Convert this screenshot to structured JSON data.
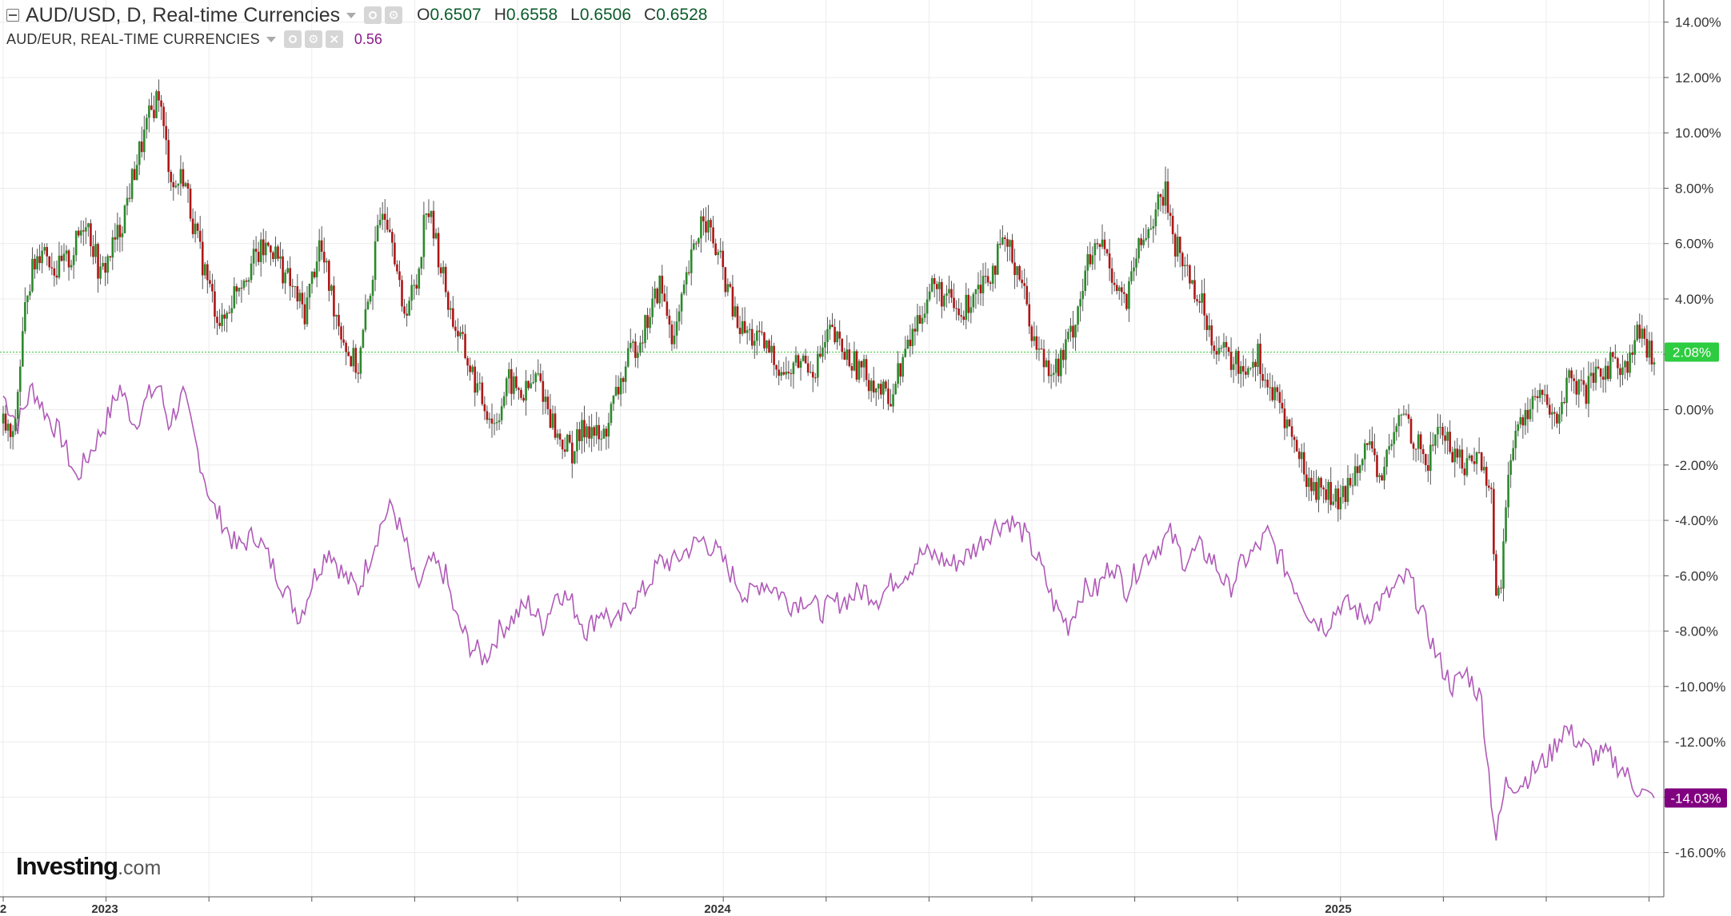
{
  "legend": {
    "main_symbol": "AUD/USD, D, Real-time Currencies",
    "open_label": "O",
    "open": "0.6507",
    "high_label": "H",
    "high": "0.6558",
    "low_label": "L",
    "low": "0.6506",
    "close_label": "C",
    "close": "0.6528",
    "compare_symbol": "AUD/EUR, REAL-TIME CURRENCIES",
    "compare_value": "0.56"
  },
  "watermark": {
    "brand": "Investing",
    "suffix": ".com"
  },
  "colors": {
    "up": "#2a8a2a",
    "down": "#b01515",
    "wick": "#555555",
    "compare_line": "#b05ab8",
    "grid": "#ececec",
    "axis": "#555555",
    "last_main_bg": "#2ecc40",
    "last_compare_bg": "#800080",
    "ohlc_text": "#0a5c2a",
    "ref_line": "#33cc33"
  },
  "chart_data": {
    "type": "candlestick",
    "title": "AUD/USD, D, Real-time Currencies",
    "y_unit": "%",
    "ylim": [
      -17.6,
      14.8
    ],
    "y_ticks": [
      "14.00%",
      "12.00%",
      "10.00%",
      "8.00%",
      "6.00%",
      "4.00%",
      "2.00%",
      "0.00%",
      "-2.00%",
      "-4.00%",
      "-6.00%",
      "-8.00%",
      "-10.00%",
      "-12.00%",
      "-14.00%",
      "-16.00%"
    ],
    "x_labels": [
      "2023",
      "2024",
      "2025"
    ],
    "x_edge_label": "2",
    "grid": true,
    "last_value_main": "2.08%",
    "last_value_compare": "-14.03%",
    "series": [
      {
        "name": "AUD/USD",
        "kind": "candles",
        "anchors": [
          [
            0,
            -0.5
          ],
          [
            4,
            -1.2
          ],
          [
            10,
            4.5
          ],
          [
            16,
            6.0
          ],
          [
            22,
            5.0
          ],
          [
            28,
            5.5
          ],
          [
            34,
            7.0
          ],
          [
            40,
            4.8
          ],
          [
            48,
            6.5
          ],
          [
            55,
            9.0
          ],
          [
            60,
            10.5
          ],
          [
            64,
            11.5
          ],
          [
            66,
            10.0
          ],
          [
            70,
            8.0
          ],
          [
            74,
            8.5
          ],
          [
            80,
            6.0
          ],
          [
            86,
            4.0
          ],
          [
            90,
            3.0
          ],
          [
            96,
            4.5
          ],
          [
            104,
            5.5
          ],
          [
            110,
            6.0
          ],
          [
            118,
            4.5
          ],
          [
            124,
            3.5
          ],
          [
            130,
            6.0
          ],
          [
            136,
            3.8
          ],
          [
            142,
            2.0
          ],
          [
            146,
            1.5
          ],
          [
            152,
            5.0
          ],
          [
            156,
            7.5
          ],
          [
            160,
            6.5
          ],
          [
            164,
            3.5
          ],
          [
            170,
            4.5
          ],
          [
            174,
            7.5
          ],
          [
            178,
            6.0
          ],
          [
            184,
            3.5
          ],
          [
            190,
            2.0
          ],
          [
            196,
            0.5
          ],
          [
            202,
            -0.5
          ],
          [
            208,
            1.0
          ],
          [
            214,
            0.5
          ],
          [
            220,
            1.2
          ],
          [
            228,
            -1.0
          ],
          [
            234,
            -1.5
          ],
          [
            240,
            -0.5
          ],
          [
            246,
            -1.2
          ],
          [
            252,
            0.5
          ],
          [
            258,
            2.0
          ],
          [
            264,
            3.0
          ],
          [
            270,
            4.5
          ],
          [
            276,
            2.5
          ],
          [
            282,
            5.0
          ],
          [
            288,
            7.2
          ],
          [
            292,
            6.0
          ],
          [
            296,
            5.0
          ],
          [
            302,
            3.0
          ],
          [
            310,
            2.5
          ],
          [
            316,
            2.0
          ],
          [
            322,
            1.2
          ],
          [
            328,
            1.8
          ],
          [
            334,
            1.5
          ],
          [
            340,
            2.8
          ],
          [
            346,
            2.0
          ],
          [
            352,
            1.5
          ],
          [
            358,
            1.0
          ],
          [
            364,
            0.3
          ],
          [
            370,
            1.8
          ],
          [
            376,
            3.2
          ],
          [
            382,
            4.5
          ],
          [
            388,
            4.0
          ],
          [
            394,
            3.3
          ],
          [
            400,
            4.5
          ],
          [
            406,
            5.0
          ],
          [
            412,
            6.0
          ],
          [
            418,
            5.0
          ],
          [
            424,
            2.5
          ],
          [
            428,
            1.8
          ],
          [
            434,
            1.5
          ],
          [
            440,
            3.0
          ],
          [
            446,
            5.2
          ],
          [
            452,
            6.0
          ],
          [
            458,
            4.5
          ],
          [
            462,
            3.8
          ],
          [
            466,
            5.5
          ],
          [
            472,
            6.8
          ],
          [
            478,
            7.8
          ],
          [
            482,
            6.0
          ],
          [
            486,
            5.2
          ],
          [
            492,
            4.0
          ],
          [
            498,
            2.5
          ],
          [
            504,
            1.8
          ],
          [
            510,
            1.5
          ],
          [
            516,
            2.0
          ],
          [
            520,
            0.8
          ],
          [
            526,
            0.0
          ],
          [
            532,
            -1.5
          ],
          [
            538,
            -2.8
          ],
          [
            544,
            -2.9
          ],
          [
            550,
            -3.5
          ],
          [
            556,
            -2.0
          ],
          [
            560,
            -1.2
          ],
          [
            566,
            -2.5
          ],
          [
            570,
            -1.5
          ],
          [
            576,
            0.0
          ],
          [
            580,
            -1.0
          ],
          [
            586,
            -2.0
          ],
          [
            590,
            -0.5
          ],
          [
            596,
            -1.5
          ],
          [
            602,
            -2.0
          ],
          [
            606,
            -1.5
          ],
          [
            612,
            -3.0
          ],
          [
            614,
            -7.0
          ],
          [
            616,
            -6.0
          ],
          [
            620,
            -1.5
          ],
          [
            626,
            0.0
          ],
          [
            632,
            0.5
          ],
          [
            638,
            -0.5
          ],
          [
            644,
            1.0
          ],
          [
            650,
            0.5
          ],
          [
            656,
            1.2
          ],
          [
            662,
            1.8
          ],
          [
            668,
            1.5
          ],
          [
            672,
            2.8
          ],
          [
            676,
            2.1
          ]
        ]
      },
      {
        "name": "AUD/EUR",
        "kind": "line",
        "anchors": [
          [
            0,
            0.5
          ],
          [
            6,
            -0.5
          ],
          [
            12,
            0.8
          ],
          [
            18,
            -0.2
          ],
          [
            24,
            -1.0
          ],
          [
            30,
            -2.5
          ],
          [
            36,
            -1.5
          ],
          [
            42,
            -0.5
          ],
          [
            48,
            0.8
          ],
          [
            54,
            -0.5
          ],
          [
            60,
            0.5
          ],
          [
            64,
            0.9
          ],
          [
            68,
            -0.5
          ],
          [
            74,
            0.5
          ],
          [
            80,
            -1.5
          ],
          [
            86,
            -3.5
          ],
          [
            90,
            -4.0
          ],
          [
            96,
            -5.0
          ],
          [
            104,
            -4.5
          ],
          [
            110,
            -5.5
          ],
          [
            116,
            -6.5
          ],
          [
            122,
            -7.5
          ],
          [
            128,
            -6.0
          ],
          [
            134,
            -5.0
          ],
          [
            140,
            -6.0
          ],
          [
            146,
            -6.5
          ],
          [
            150,
            -5.5
          ],
          [
            156,
            -4.0
          ],
          [
            160,
            -3.5
          ],
          [
            166,
            -5.0
          ],
          [
            170,
            -6.5
          ],
          [
            176,
            -5.5
          ],
          [
            182,
            -6.0
          ],
          [
            186,
            -7.5
          ],
          [
            192,
            -8.5
          ],
          [
            198,
            -9.0
          ],
          [
            204,
            -8.0
          ],
          [
            210,
            -7.5
          ],
          [
            216,
            -7.0
          ],
          [
            222,
            -7.8
          ],
          [
            228,
            -6.5
          ],
          [
            234,
            -7.0
          ],
          [
            240,
            -8.0
          ],
          [
            246,
            -7.2
          ],
          [
            252,
            -7.8
          ],
          [
            258,
            -7.0
          ],
          [
            264,
            -6.5
          ],
          [
            270,
            -5.5
          ],
          [
            276,
            -5.5
          ],
          [
            282,
            -5.0
          ],
          [
            288,
            -4.7
          ],
          [
            294,
            -5.2
          ],
          [
            300,
            -6.0
          ],
          [
            306,
            -6.8
          ],
          [
            312,
            -6.2
          ],
          [
            318,
            -6.5
          ],
          [
            324,
            -7.0
          ],
          [
            330,
            -6.8
          ],
          [
            336,
            -7.3
          ],
          [
            342,
            -7.0
          ],
          [
            348,
            -6.8
          ],
          [
            354,
            -6.5
          ],
          [
            360,
            -6.8
          ],
          [
            366,
            -6.2
          ],
          [
            372,
            -5.8
          ],
          [
            378,
            -5.2
          ],
          [
            384,
            -5.3
          ],
          [
            390,
            -5.6
          ],
          [
            396,
            -5.3
          ],
          [
            402,
            -4.8
          ],
          [
            408,
            -4.2
          ],
          [
            414,
            -4.0
          ],
          [
            420,
            -4.5
          ],
          [
            426,
            -5.5
          ],
          [
            432,
            -7.0
          ],
          [
            438,
            -7.8
          ],
          [
            444,
            -6.5
          ],
          [
            450,
            -6.5
          ],
          [
            456,
            -5.5
          ],
          [
            462,
            -6.5
          ],
          [
            468,
            -5.5
          ],
          [
            474,
            -5.0
          ],
          [
            480,
            -4.5
          ],
          [
            486,
            -5.5
          ],
          [
            492,
            -5.0
          ],
          [
            498,
            -5.5
          ],
          [
            504,
            -6.5
          ],
          [
            510,
            -5.5
          ],
          [
            516,
            -5.0
          ],
          [
            520,
            -4.5
          ],
          [
            526,
            -5.5
          ],
          [
            532,
            -6.5
          ],
          [
            538,
            -7.5
          ],
          [
            544,
            -7.8
          ],
          [
            550,
            -7.0
          ],
          [
            556,
            -7.2
          ],
          [
            560,
            -7.5
          ],
          [
            566,
            -7.0
          ],
          [
            572,
            -6.5
          ],
          [
            578,
            -6.0
          ],
          [
            584,
            -7.5
          ],
          [
            590,
            -9.0
          ],
          [
            596,
            -10.0
          ],
          [
            602,
            -9.5
          ],
          [
            608,
            -10.5
          ],
          [
            612,
            -14.0
          ],
          [
            614,
            -15.5
          ],
          [
            618,
            -13.5
          ],
          [
            624,
            -13.5
          ],
          [
            630,
            -13.0
          ],
          [
            636,
            -12.5
          ],
          [
            642,
            -11.5
          ],
          [
            648,
            -12.0
          ],
          [
            654,
            -12.5
          ],
          [
            660,
            -12.5
          ],
          [
            666,
            -13.0
          ],
          [
            670,
            -13.5
          ],
          [
            676,
            -14.0
          ]
        ]
      }
    ]
  }
}
